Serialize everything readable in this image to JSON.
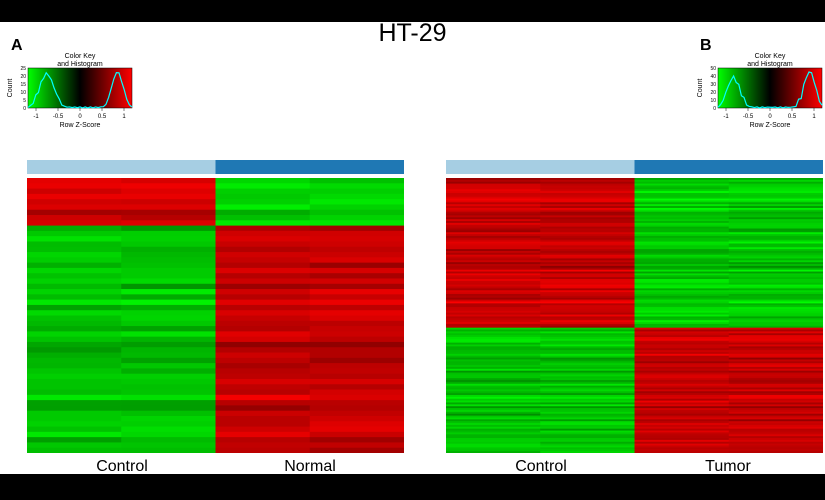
{
  "figure": {
    "title": "HT-29",
    "background": "#ffffff",
    "frame": "#000000"
  },
  "colors": {
    "low": "#00ff00",
    "mid": "#000000",
    "high": "#ff0000",
    "histogram": "#00ffff",
    "group_light": "#a6cee3",
    "group_dark": "#1f78b4"
  },
  "chart_data": [
    {
      "type": "heatmap",
      "panel": "A",
      "groups": [
        {
          "name": "Control",
          "columns": 2,
          "color": "#a6cee3"
        },
        {
          "name": "Normal",
          "columns": 2,
          "color": "#1f78b4"
        }
      ],
      "row_blocks": [
        {
          "label": "up",
          "rows": 9,
          "pattern": [
            1,
            1,
            -1,
            -1
          ]
        },
        {
          "label": "down",
          "rows": 43,
          "pattern": [
            -1,
            -1,
            1,
            1
          ]
        }
      ],
      "color_key": {
        "title": "Color Key",
        "subtitle": "and Histogram",
        "xlabel": "Row Z-Score",
        "ylabel": "Count",
        "xlim": [
          -1.5,
          1.5
        ],
        "ticks": [
          "-1",
          "-0.5",
          "0",
          "0.5",
          "1"
        ],
        "yticks": [
          "0",
          "5",
          "10",
          "15",
          "20",
          "25"
        ]
      }
    },
    {
      "type": "heatmap",
      "panel": "B",
      "groups": [
        {
          "name": "Control",
          "columns": 2,
          "color": "#a6cee3"
        },
        {
          "name": "Tumor",
          "columns": 2,
          "color": "#1f78b4"
        }
      ],
      "row_blocks": [
        {
          "label": "down",
          "rows": 80,
          "pattern": [
            1,
            1,
            -1,
            -1
          ]
        },
        {
          "label": "up",
          "rows": 67,
          "pattern": [
            -1,
            -1,
            1,
            1
          ]
        }
      ],
      "color_key": {
        "title": "Color Key",
        "subtitle": "and Histogram",
        "xlabel": "Row Z-Score",
        "ylabel": "Count",
        "xlim": [
          -1.5,
          1.5
        ],
        "ticks": [
          "-1",
          "-0.5",
          "0",
          "0.5",
          "1"
        ],
        "yticks": [
          "0",
          "10",
          "20",
          "30",
          "40",
          "50"
        ]
      }
    }
  ]
}
